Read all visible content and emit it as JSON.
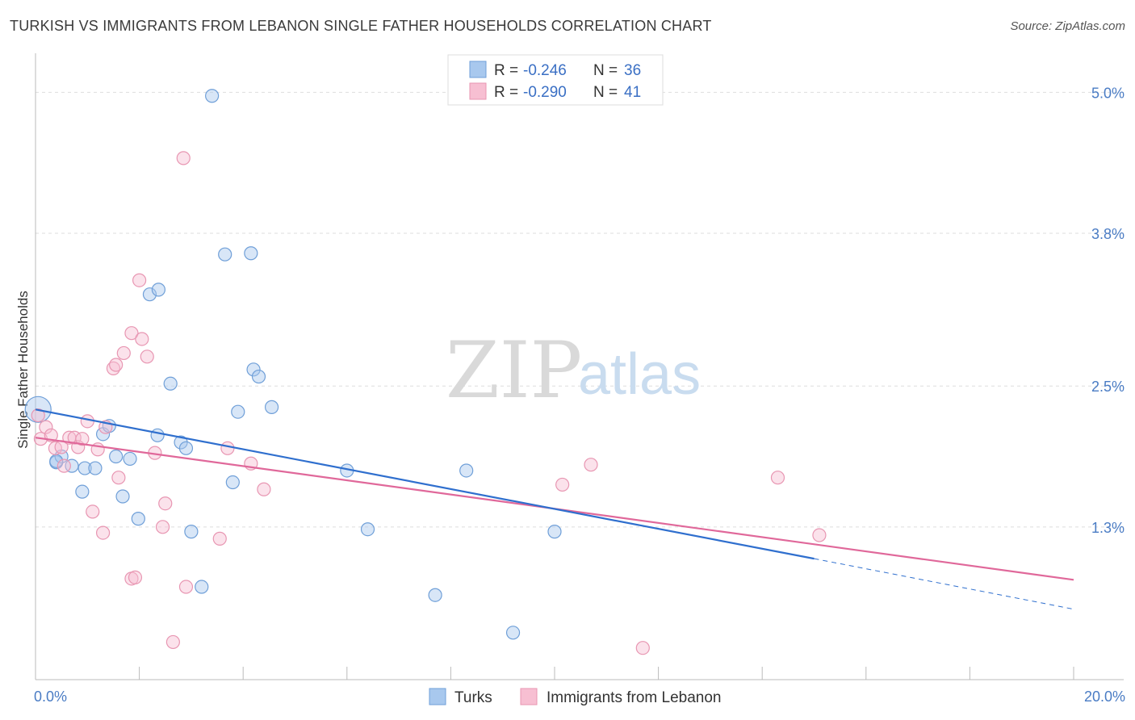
{
  "header": {
    "title": "TURKISH VS IMMIGRANTS FROM LEBANON SINGLE FATHER HOUSEHOLDS CORRELATION CHART",
    "source": "Source: ZipAtlas.com"
  },
  "watermark": {
    "zip": "ZIP",
    "atlas": "atlas"
  },
  "colors": {
    "turks_fill": "#a8c8ee",
    "turks_stroke": "#6f9fd8",
    "turks_line": "#2f6fce",
    "leb_fill": "#f7bfd2",
    "leb_stroke": "#e896b2",
    "leb_line": "#e0689a",
    "grid": "#dddddd",
    "tick_text": "#4a7cc4"
  },
  "legend": {
    "rows": [
      {
        "r_label": "R = ",
        "r_value": "-0.246",
        "n_label": "N = ",
        "n_value": "36"
      },
      {
        "r_label": "R = ",
        "r_value": "-0.290",
        "n_label": "N = ",
        "n_value": "41"
      }
    ]
  },
  "chart_data": {
    "type": "scatter",
    "title": "TURKISH VS IMMIGRANTS FROM LEBANON SINGLE FATHER HOUSEHOLDS CORRELATION CHART",
    "xlabel": "",
    "ylabel": "Single Father Households",
    "xlim": [
      0,
      20
    ],
    "ylim": [
      0,
      5.25
    ],
    "x_tick_labels": [
      "0.0%",
      "20.0%"
    ],
    "y_ticks": [
      1.3,
      2.5,
      3.8,
      5.0
    ],
    "y_tick_labels": [
      "1.3%",
      "2.5%",
      "3.8%",
      "5.0%"
    ],
    "grid": true,
    "legend_position": "top-center",
    "series": [
      {
        "name": "Turks",
        "r": -0.246,
        "n": 36,
        "trend": {
          "x0": 0,
          "y0": 2.3,
          "x1": 15,
          "y1": 1.03,
          "dashed_to_x": 20,
          "dashed_to_y": 0.6
        },
        "points": [
          [
            0.05,
            2.3
          ],
          [
            0.4,
            1.85
          ],
          [
            0.5,
            1.9
          ],
          [
            0.7,
            1.82
          ],
          [
            0.9,
            1.6
          ],
          [
            0.95,
            1.8
          ],
          [
            1.15,
            1.8
          ],
          [
            1.3,
            2.09
          ],
          [
            1.42,
            2.16
          ],
          [
            1.55,
            1.9
          ],
          [
            1.68,
            1.56
          ],
          [
            1.82,
            1.88
          ],
          [
            1.98,
            1.37
          ],
          [
            2.2,
            3.28
          ],
          [
            2.37,
            3.32
          ],
          [
            2.35,
            2.08
          ],
          [
            2.6,
            2.52
          ],
          [
            2.8,
            2.02
          ],
          [
            2.9,
            1.97
          ],
          [
            3.0,
            1.26
          ],
          [
            3.2,
            0.79
          ],
          [
            3.4,
            4.97
          ],
          [
            3.65,
            3.62
          ],
          [
            3.8,
            1.68
          ],
          [
            3.9,
            2.28
          ],
          [
            4.15,
            3.63
          ],
          [
            4.2,
            2.64
          ],
          [
            4.3,
            2.58
          ],
          [
            4.55,
            2.32
          ],
          [
            6.0,
            1.78
          ],
          [
            6.4,
            1.28
          ],
          [
            7.7,
            0.72
          ],
          [
            8.3,
            1.78
          ],
          [
            9.2,
            0.4
          ],
          [
            10.0,
            1.26
          ],
          [
            0.4,
            1.86
          ]
        ]
      },
      {
        "name": "Immigrants from Lebanon",
        "r": -0.29,
        "n": 41,
        "trend": {
          "x0": 0,
          "y0": 2.06,
          "x1": 20,
          "y1": 0.85
        },
        "points": [
          [
            0.05,
            2.25
          ],
          [
            0.1,
            2.05
          ],
          [
            0.2,
            2.15
          ],
          [
            0.3,
            2.08
          ],
          [
            0.38,
            1.97
          ],
          [
            0.5,
            1.98
          ],
          [
            0.55,
            1.82
          ],
          [
            0.65,
            2.06
          ],
          [
            0.75,
            2.06
          ],
          [
            0.82,
            1.98
          ],
          [
            0.9,
            2.05
          ],
          [
            1.0,
            2.2
          ],
          [
            1.1,
            1.43
          ],
          [
            1.2,
            1.96
          ],
          [
            1.3,
            1.25
          ],
          [
            1.35,
            2.15
          ],
          [
            1.5,
            2.65
          ],
          [
            1.55,
            2.68
          ],
          [
            1.6,
            1.72
          ],
          [
            1.7,
            2.78
          ],
          [
            1.85,
            2.95
          ],
          [
            2.0,
            3.4
          ],
          [
            2.05,
            2.9
          ],
          [
            2.15,
            2.75
          ],
          [
            1.85,
            0.86
          ],
          [
            1.92,
            0.87
          ],
          [
            2.3,
            1.93
          ],
          [
            2.45,
            1.3
          ],
          [
            2.5,
            1.5
          ],
          [
            2.65,
            0.32
          ],
          [
            2.85,
            4.44
          ],
          [
            2.9,
            0.79
          ],
          [
            3.55,
            1.2
          ],
          [
            3.7,
            1.97
          ],
          [
            4.15,
            1.84
          ],
          [
            4.4,
            1.62
          ],
          [
            10.15,
            1.66
          ],
          [
            10.7,
            1.83
          ],
          [
            11.7,
            0.27
          ],
          [
            14.3,
            1.72
          ],
          [
            15.1,
            1.23
          ]
        ]
      }
    ]
  }
}
